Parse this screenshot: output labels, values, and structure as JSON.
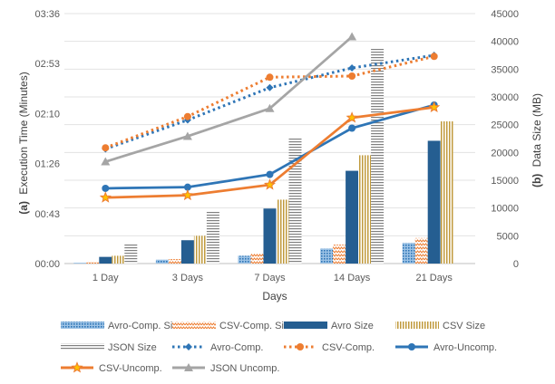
{
  "chart_data": {
    "type": "bar",
    "categories": [
      "1 Day",
      "3 Days",
      "7 Days",
      "14 Days",
      "21 Days"
    ],
    "xlabel": "Days",
    "left_axis": {
      "label_prefix": "(a)",
      "label_text": "Execution Time (Minutes)",
      "ticks": [
        "00:00",
        "00:43",
        "01:26",
        "02:10",
        "02:53",
        "03:36"
      ],
      "range_minutes": [
        0,
        216
      ]
    },
    "right_axis": {
      "label_prefix": "(b)",
      "label_text": "Data Size (MB)",
      "ticks": [
        "0",
        "5000",
        "10000",
        "15000",
        "20000",
        "25000",
        "30000",
        "35000",
        "40000",
        "45000"
      ],
      "range_mb": [
        0,
        45000
      ]
    },
    "grid": true,
    "legend_position": "bottom",
    "bar_series": [
      {
        "name": "Avro-Comp. Size",
        "values": [
          150,
          700,
          1400,
          2700,
          3700
        ],
        "color": "#5b9bd5",
        "pattern": "dots"
      },
      {
        "name": "CSV-Comp. Size",
        "values": [
          200,
          800,
          1800,
          3400,
          4600
        ],
        "color": "#ed7d31",
        "pattern": "zigzag"
      },
      {
        "name": "Avro Size",
        "values": [
          1200,
          4200,
          9900,
          16700,
          22100
        ],
        "color": "#255e91",
        "pattern": "solid"
      },
      {
        "name": "CSV Size",
        "values": [
          1400,
          5000,
          11500,
          19500,
          25600
        ],
        "color": "#c09a3c",
        "pattern": "vertical"
      },
      {
        "name": "JSON Size",
        "values": [
          3500,
          9400,
          22600,
          38800,
          null
        ],
        "color": "#a6a6a6",
        "pattern": "horizontal"
      }
    ],
    "line_series": [
      {
        "name": "Avro-Comp.",
        "values": [
          99,
          124,
          152,
          169,
          180
        ],
        "color": "#2e75b6",
        "style": "dotted",
        "marker": "diamond"
      },
      {
        "name": "CSV-Comp.",
        "values": [
          100,
          127,
          161,
          162,
          179
        ],
        "color": "#ed7d31",
        "style": "dotted",
        "marker": "circle"
      },
      {
        "name": "Avro-Uncomp.",
        "values": [
          65,
          66,
          77,
          117,
          137
        ],
        "color": "#2e75b6",
        "style": "solid",
        "marker": "circle"
      },
      {
        "name": "CSV-Uncomp.",
        "values": [
          57,
          59,
          68,
          126,
          135
        ],
        "color": "#ed7d31",
        "style": "solid",
        "marker": "star"
      },
      {
        "name": "JSON Uncomp.",
        "values": [
          88,
          110,
          134,
          196,
          null
        ],
        "color": "#a5a5a5",
        "style": "solid",
        "marker": "triangle"
      }
    ]
  }
}
